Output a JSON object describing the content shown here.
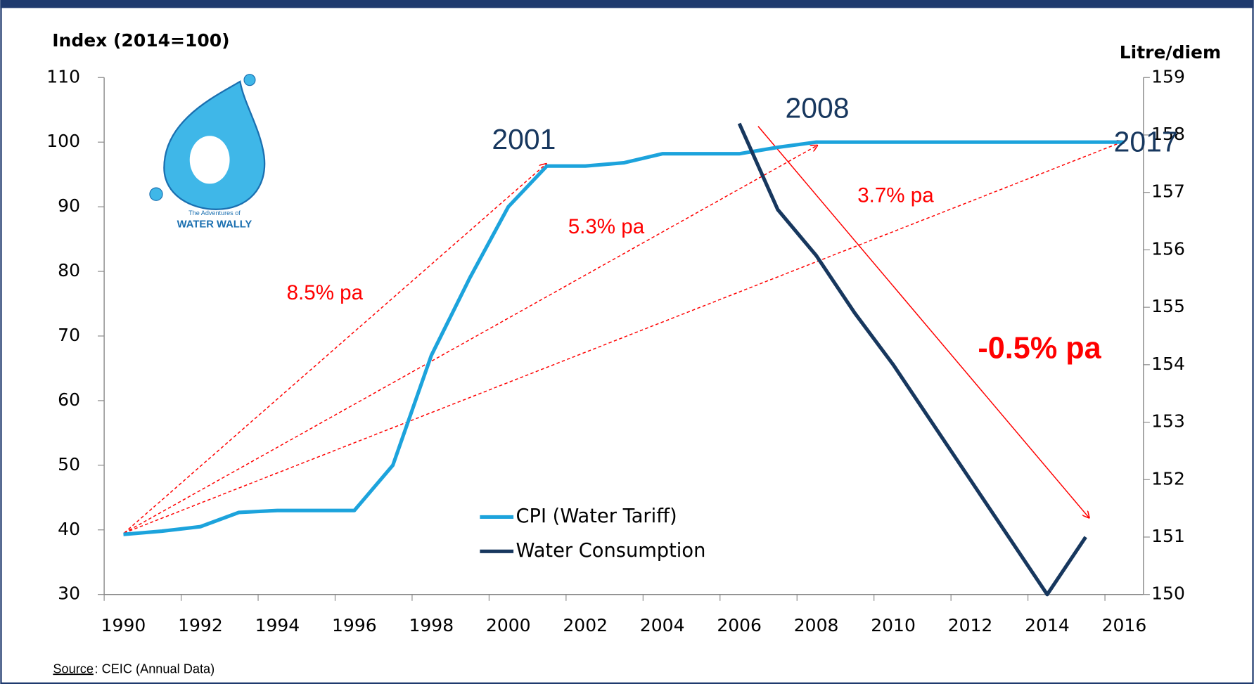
{
  "chart_data": {
    "type": "line",
    "y_label": "Index (2014=100)",
    "y2_label": "Litre/diem",
    "categories": [
      1990,
      null,
      1992,
      null,
      1994,
      null,
      1996,
      null,
      1998,
      null,
      2000,
      null,
      2002,
      null,
      2004,
      null,
      2006,
      null,
      2008,
      null,
      2010,
      null,
      2012,
      null,
      2014,
      null,
      2016
    ],
    "series": [
      {
        "name": "CPI (Water Tariff)",
        "color": "#1ca3dc",
        "axis": "y",
        "values": [
          39.3,
          39.8,
          40.5,
          42.7,
          43,
          43,
          43,
          50,
          67,
          79,
          90,
          96.3,
          96.3,
          96.8,
          98.2,
          98.2,
          98.2,
          99.2,
          100,
          100,
          100,
          100,
          100,
          100,
          100,
          100,
          100
        ]
      },
      {
        "name": "Water Consumption",
        "color": "#17375e",
        "axis": "y2",
        "values": [
          null,
          null,
          null,
          null,
          null,
          null,
          null,
          null,
          null,
          null,
          null,
          null,
          null,
          null,
          null,
          null,
          158.2,
          156.7,
          155.9,
          154.9,
          154.0,
          153.0,
          152.0,
          151.0,
          150.0,
          151.0,
          null
        ]
      }
    ],
    "ylim": [
      30,
      110
    ],
    "yticks": [
      30,
      40,
      50,
      60,
      70,
      80,
      90,
      100,
      110
    ],
    "y2lim": [
      150,
      159
    ],
    "y2ticks": [
      150,
      151,
      152,
      153,
      154,
      155,
      156,
      157,
      158,
      159
    ],
    "annotations": [
      "2001",
      "2008",
      "2017",
      "8.5% pa",
      "5.3% pa",
      "3.7% pa",
      "-0.5% pa"
    ],
    "logo": {
      "subtitle": "The Adventures of",
      "name": "WATER WALLY"
    },
    "source": {
      "label": "Source",
      "text": ": CEIC (Annual Data)"
    }
  }
}
